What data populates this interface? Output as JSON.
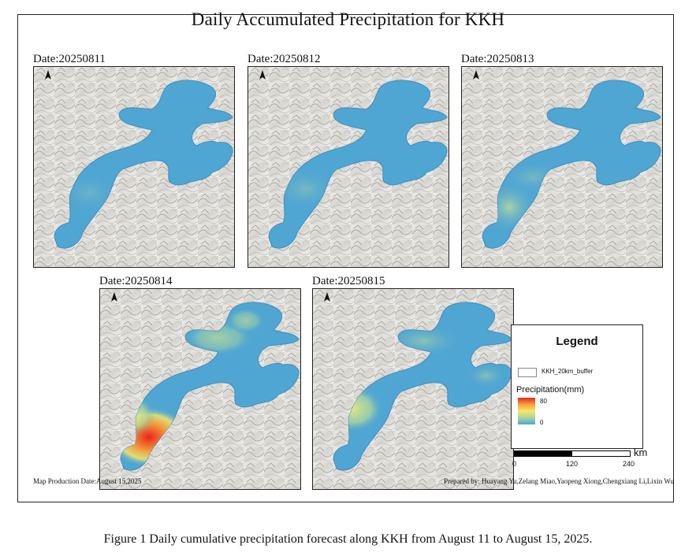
{
  "map": {
    "title": "Daily Accumulated Precipitation for KKH",
    "footer_left": "Map Production Date:August 15,2025",
    "footer_right": "Prepared by: Huayang Yu,Zelang Miao,Yaopeng Xiong,Chengxiang Li,Lixin Wu",
    "panels": [
      {
        "date": "Date:20250811",
        "hotspot": "none"
      },
      {
        "date": "Date:20250812",
        "hotspot": "none"
      },
      {
        "date": "Date:20250813",
        "hotspot": "light"
      },
      {
        "date": "Date:20250814",
        "hotspot": "heavy"
      },
      {
        "date": "Date:20250815",
        "hotspot": "moderate"
      }
    ],
    "north_arrow_icon": "north-arrow-icon"
  },
  "legend": {
    "title": "Legend",
    "buffer_label": "KKH_20km_buffer",
    "precip_title": "Precipitation(mm)",
    "ramp_max": "80",
    "ramp_min": "0",
    "colors": {
      "low": "#4fa6d3",
      "mid": "#f4e867",
      "high": "#e8261f"
    }
  },
  "scale": {
    "unit": "km",
    "ticks": [
      "0",
      "120",
      "240"
    ]
  },
  "caption": "Figure 1 Daily cumulative precipitation forecast along KKH from August 11 to August 15, 2025."
}
